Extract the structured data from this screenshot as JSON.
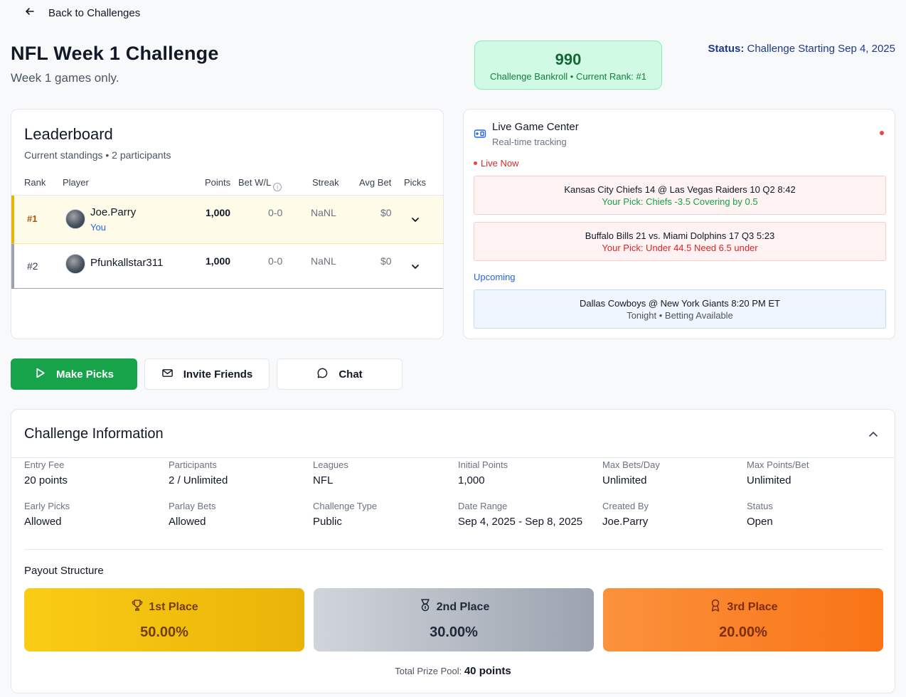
{
  "nav": {
    "back_label": "Back to Challenges"
  },
  "header": {
    "title": "NFL Week 1 Challenge",
    "subtitle": "Week 1 games only.",
    "bankroll_value": "990",
    "bankroll_sub": "Challenge Bankroll • Current Rank: #1",
    "status_label": "Status:",
    "status_value": " Challenge Starting Sep 4, 2025"
  },
  "leaderboard": {
    "title": "Leaderboard",
    "subtitle": "Current standings • 2 participants",
    "columns": {
      "rank": "Rank",
      "player": "Player",
      "points": "Points",
      "betwl": "Bet W/L",
      "streak": "Streak",
      "avgbet": "Avg Bet",
      "picks": "Picks"
    },
    "rows": [
      {
        "rank": "#1",
        "name": "Joe.Parry",
        "tag": "You",
        "points": "1,000",
        "wl": "0-0",
        "streak": "NaNL",
        "avg": "$0"
      },
      {
        "rank": "#2",
        "name": "Pfunkallstar311",
        "tag": "",
        "points": "1,000",
        "wl": "0-0",
        "streak": "NaNL",
        "avg": "$0"
      }
    ]
  },
  "live": {
    "title": "Live Game Center",
    "subtitle": "Real-time tracking",
    "live_label": "Live Now",
    "upcoming_label": "Upcoming",
    "games": [
      {
        "line1": "Kansas City Chiefs 14 @ Las Vegas Raiders 10 Q2 8:42",
        "line2": "Your Pick: Chiefs -3.5 Covering by 0.5"
      },
      {
        "line1": "Buffalo Bills 21 vs. Miami Dolphins 17 Q3 5:23",
        "line2": "Your Pick: Under 44.5 Need 6.5 under"
      },
      {
        "line1": "Dallas Cowboys @ New York Giants 8:20 PM ET",
        "line2": "Tonight • Betting Available"
      }
    ]
  },
  "actions": {
    "make_picks": "Make Picks",
    "invite": "Invite Friends",
    "chat": "Chat"
  },
  "info": {
    "title": "Challenge Information",
    "fields": [
      {
        "label": "Entry Fee",
        "value": "20 points"
      },
      {
        "label": "Participants",
        "value": "2 / Unlimited"
      },
      {
        "label": "Leagues",
        "value": "NFL"
      },
      {
        "label": "Initial Points",
        "value": "1,000"
      },
      {
        "label": "Max Bets/Day",
        "value": "Unlimited"
      },
      {
        "label": "Max Points/Bet",
        "value": "Unlimited"
      },
      {
        "label": "Early Picks",
        "value": "Allowed"
      },
      {
        "label": "Parlay Bets",
        "value": "Allowed"
      },
      {
        "label": "Challenge Type",
        "value": "Public"
      },
      {
        "label": "Date Range",
        "value": "Sep 4, 2025 - Sep 8, 2025"
      },
      {
        "label": "Created By",
        "value": "Joe.Parry"
      },
      {
        "label": "Status",
        "value": "Open"
      }
    ],
    "payout_title": "Payout Structure",
    "payouts": [
      {
        "place": "1st Place",
        "pct": "50.00%"
      },
      {
        "place": "2nd Place",
        "pct": "30.00%"
      },
      {
        "place": "3rd Place",
        "pct": "20.00%"
      }
    ],
    "prize_pool_label": "Total Prize Pool: ",
    "prize_pool_value": "40 points"
  },
  "colors": {
    "primary_green": "#16a34a",
    "gold": "#eab308",
    "silver": "#9ca3af",
    "bronze": "#f97316",
    "live_red": "#dc2626",
    "upcoming_blue": "#2563eb"
  }
}
